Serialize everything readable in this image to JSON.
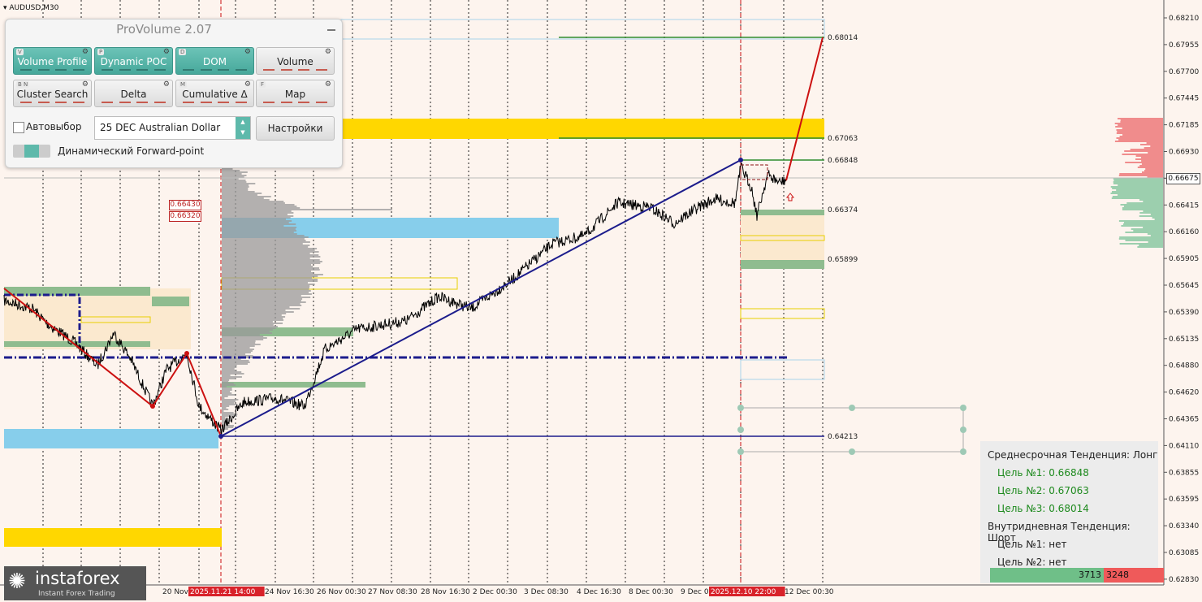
{
  "chart_title": "AUDUSD,M30",
  "panel": {
    "title": "ProVolume 2.07",
    "buttons": [
      {
        "label": "Volume Profile",
        "key": "V",
        "active": true
      },
      {
        "label": "Dynamic POC",
        "key": "P",
        "active": true
      },
      {
        "label": "DOM",
        "key": "D",
        "active": true
      },
      {
        "label": "Volume",
        "key": "",
        "active": false
      },
      {
        "label": "Cluster Search",
        "key": "B N",
        "active": false
      },
      {
        "label": "Delta",
        "key": "",
        "active": false
      },
      {
        "label": "Cumulative Δ",
        "key": "M",
        "active": false
      },
      {
        "label": "Map",
        "key": "F",
        "active": false
      }
    ],
    "autoselect_label": "Автовыбор",
    "instrument": "25 DEC Australian Dollar",
    "settings_label": "Настройки",
    "forward_point_label": "Динамический Forward-point"
  },
  "price_axis": [
    "0.68210",
    "0.67955",
    "0.67700",
    "0.67445",
    "0.67185",
    "0.66930",
    "0.66675",
    "0.66415",
    "0.66160",
    "0.65905",
    "0.65645",
    "0.65390",
    "0.65135",
    "0.64880",
    "0.64620",
    "0.64365",
    "0.64110",
    "0.63855",
    "0.63595",
    "0.63340",
    "0.63085",
    "0.62830"
  ],
  "current_price": "0.66675",
  "time_axis": [
    "20 Nov",
    "2025.11.21 14:00",
    "24 Nov 16:30",
    "26 Nov 00:30",
    "27 Nov 08:30",
    "28 Nov 16:30",
    "2 Dec 00:30",
    "3 Dec 08:30",
    "4 Dec 16:30",
    "8 Dec 00:30",
    "9 Dec 08",
    "2025.12.10 22:00",
    "12 Dec 00:30"
  ],
  "level_labels": {
    "l1": "0.68014",
    "l2": "0.67063",
    "l3": "0.66848",
    "l4": "0.66374",
    "l5": "0.65899",
    "l6": "0.64213"
  },
  "red_labels": [
    "0.66430",
    "0.66320"
  ],
  "info": {
    "mid_trend": "Среднесрочная Тенденция: Лонг",
    "t1": "Цель №1: 0.66848",
    "t2": "Цель №2: 0.67063",
    "t3": "Цель №3: 0.68014",
    "intra_trend": "Внутридневная Тенденция: Шорт",
    "i1": "Цель №1: нет",
    "i2": "Цель №2: нет"
  },
  "votes": {
    "buy": "3713",
    "sell": "3248"
  },
  "logo": {
    "name": "instaforex",
    "tagline": "Instant Forex Trading"
  },
  "colors": {
    "background": "#fdf4ee",
    "uptrend": "#1c1c8c",
    "target": "#cc1111",
    "green_level": "#2e8b2e"
  }
}
